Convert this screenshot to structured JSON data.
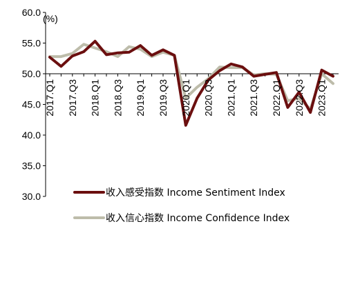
{
  "chart_data": {
    "type": "line",
    "y_unit": "(%)",
    "ylim": [
      30,
      60
    ],
    "y_ticks": [
      "60.0",
      "55.0",
      "50.0",
      "45.0",
      "40.0",
      "35.0",
      "30.0"
    ],
    "x_tick_labels": [
      "2017.Q1",
      "2017.Q3",
      "2018.Q1",
      "2018.Q3",
      "2019.Q1",
      "2019.Q3",
      "2020.Q1",
      "2020.Q3",
      "2021.Q1",
      "2021.Q3",
      "2022.Q1",
      "2022.Q3",
      "2023.Q1"
    ],
    "x": [
      "2017.Q1",
      "2017.Q2",
      "2017.Q3",
      "2017.Q4",
      "2018.Q1",
      "2018.Q2",
      "2018.Q3",
      "2018.Q4",
      "2019.Q1",
      "2019.Q2",
      "2019.Q3",
      "2019.Q4",
      "2020.Q1",
      "2020.Q2",
      "2020.Q3",
      "2020.Q4",
      "2021.Q1",
      "2021.Q2",
      "2021.Q3",
      "2021.Q4",
      "2022.Q1",
      "2022.Q2",
      "2022.Q3",
      "2022.Q4",
      "2023.Q1",
      "2023.Q2"
    ],
    "series": [
      {
        "name": "收入感受指数 Income Sentiment  Index",
        "color": "#6b0f0f",
        "values": [
          52.7,
          51.2,
          52.9,
          53.6,
          55.3,
          53.1,
          53.4,
          53.5,
          54.6,
          53.0,
          53.9,
          53.0,
          41.6,
          46.0,
          49.0,
          50.5,
          51.6,
          51.1,
          49.6,
          49.9,
          50.2,
          44.5,
          47.0,
          43.7,
          50.6,
          49.6
        ]
      },
      {
        "name": "收入信心指数 Income Confidence Index",
        "color": "#bdbcaa",
        "values": [
          52.8,
          52.8,
          53.3,
          54.8,
          54.2,
          53.6,
          52.8,
          54.4,
          54.0,
          52.8,
          53.5,
          53.0,
          46.0,
          47.8,
          49.2,
          51.1,
          51.0,
          51.0,
          49.8,
          50.0,
          49.9,
          45.6,
          46.0,
          44.2,
          50.0,
          48.4
        ]
      }
    ],
    "grid": false,
    "legend_position": "bottom-left"
  }
}
